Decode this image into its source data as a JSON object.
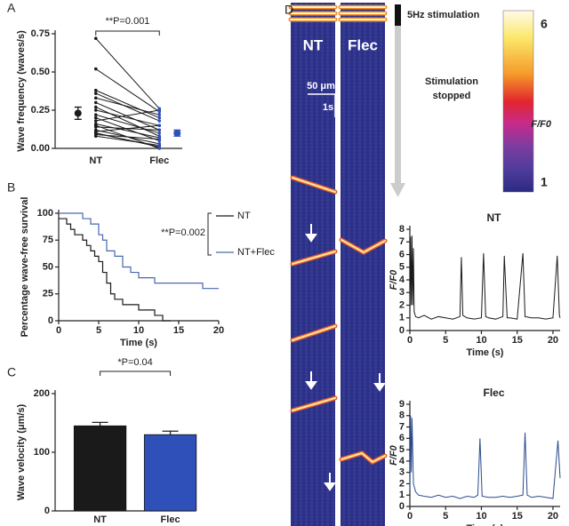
{
  "chart_data": [
    {
      "type": "paired",
      "panel": "A",
      "ylabel": "Wave frequency (waves/s)",
      "categories": [
        "NT",
        "Flec"
      ],
      "pairs": [
        [
          0.72,
          0.26
        ],
        [
          0.52,
          0.24
        ],
        [
          0.38,
          0.2
        ],
        [
          0.36,
          0.18
        ],
        [
          0.33,
          0.22
        ],
        [
          0.3,
          0.12
        ],
        [
          0.27,
          0.08
        ],
        [
          0.25,
          0.15
        ],
        [
          0.22,
          0.1
        ],
        [
          0.2,
          0.05
        ],
        [
          0.18,
          0.25
        ],
        [
          0.16,
          0.07
        ],
        [
          0.14,
          0.12
        ],
        [
          0.12,
          0.03
        ],
        [
          0.1,
          0.01
        ],
        [
          0.09,
          0.06
        ],
        [
          0.08,
          0.02
        ],
        [
          0.15,
          0.0
        ],
        [
          0.11,
          0.15
        ],
        [
          0.1,
          0.01
        ]
      ],
      "means": [
        0.23,
        0.1
      ],
      "errors": [
        0.04,
        0.02
      ],
      "colors": [
        "#1a1a1a",
        "#2e50b8"
      ],
      "line_color": "#1a1a1a",
      "annotation": "**P=0.001",
      "ylim": [
        0,
        0.75
      ],
      "yticks": [
        {
          "value": 0,
          "label": "0.00"
        },
        {
          "value": 0.25,
          "label": "0.25"
        },
        {
          "value": 0.5,
          "label": "0.50"
        },
        {
          "value": 0.75,
          "label": "0.75"
        }
      ]
    },
    {
      "type": "step",
      "panel": "B",
      "xlabel": "Time (s)",
      "ylabel": "Percentage wave-free survival",
      "annotation": "**P=0.002",
      "series": [
        {
          "name": "NT",
          "color": "#1a1a1a",
          "x": [
            0,
            1,
            1.5,
            2,
            3,
            3.5,
            4,
            4.5,
            5,
            5.5,
            6,
            6.5,
            7,
            8,
            10,
            12,
            13,
            14
          ],
          "values": [
            95,
            90,
            85,
            80,
            75,
            70,
            65,
            60,
            55,
            45,
            35,
            25,
            20,
            15,
            10,
            5,
            0,
            0
          ]
        },
        {
          "name": "NT+Flec",
          "color": "#4a68b0",
          "x": [
            0,
            3,
            4,
            5,
            5.5,
            6,
            7,
            8,
            9,
            10,
            12,
            15,
            18,
            20
          ],
          "values": [
            100,
            95,
            90,
            80,
            75,
            65,
            60,
            50,
            45,
            40,
            35,
            35,
            30,
            30
          ]
        }
      ],
      "xlim": [
        0,
        20
      ],
      "xticks": [
        0,
        5,
        10,
        15,
        20
      ],
      "ylim": [
        0,
        100
      ],
      "yticks": [
        0,
        25,
        50,
        75,
        100
      ]
    },
    {
      "type": "bar",
      "panel": "C",
      "ylabel": "Wave velocity (μm/s)",
      "categories": [
        "NT",
        "Flec"
      ],
      "values": [
        145,
        130
      ],
      "errors": [
        6,
        6
      ],
      "colors": [
        "#1a1a1a",
        "#2e50b8"
      ],
      "annotation": "*P=0.04",
      "ylim": [
        0,
        200
      ],
      "yticks": [
        0,
        100,
        200
      ]
    },
    {
      "type": "line",
      "title": "NT",
      "xlabel": "Time (s)",
      "ylabel": "F/F0",
      "color": "#1a1a1a",
      "x": [
        0,
        0.1,
        0.2,
        0.3,
        0.4,
        0.5,
        0.6,
        0.8,
        1.2,
        2,
        3,
        4,
        5,
        6,
        7,
        7.2,
        7.4,
        8,
        9,
        10,
        10.3,
        10.6,
        11,
        12,
        13,
        13.2,
        13.6,
        14,
        15,
        15.8,
        16.1,
        17,
        18,
        19,
        20,
        20.6,
        20.9,
        21
      ],
      "values": [
        1.2,
        7.4,
        2,
        7.5,
        2,
        6.5,
        1.5,
        1.1,
        1,
        1.2,
        0.9,
        1.1,
        1,
        0.9,
        1.1,
        5.8,
        1.2,
        1,
        0.9,
        1,
        6.1,
        1.1,
        1,
        0.9,
        1.1,
        5.9,
        1,
        1,
        0.9,
        6.1,
        1.1,
        1,
        1,
        0.9,
        1,
        5.9,
        1.2,
        1
      ],
      "xlim": [
        0,
        21
      ],
      "xticks": [
        0,
        5,
        10,
        15,
        20
      ],
      "ylim": [
        0,
        8
      ],
      "yticks": [
        0,
        1,
        2,
        3,
        4,
        5,
        6,
        7,
        8
      ]
    },
    {
      "type": "line",
      "title": "Flec",
      "xlabel": "Time (s)",
      "ylabel": "F/F0",
      "color": "#2a4a8a",
      "x": [
        0,
        0.1,
        0.2,
        0.3,
        0.5,
        0.8,
        1.2,
        2,
        3,
        4,
        5,
        6,
        7,
        8,
        9,
        9.5,
        9.8,
        10.1,
        11,
        12,
        13,
        14,
        15,
        15.8,
        16.1,
        16.4,
        17,
        18,
        19,
        20,
        20.7,
        21
      ],
      "values": [
        1.5,
        8,
        3,
        7.8,
        2,
        1.3,
        1,
        0.9,
        0.8,
        1,
        0.8,
        0.9,
        0.7,
        0.9,
        0.8,
        1,
        6,
        0.9,
        0.8,
        0.8,
        0.9,
        0.8,
        0.9,
        1,
        6.5,
        1,
        0.8,
        0.9,
        0.8,
        0.7,
        5.8,
        2.5
      ],
      "xlim": [
        0,
        21
      ],
      "xticks": [
        0,
        5,
        10,
        15,
        20
      ],
      "ylim": [
        0,
        9
      ],
      "yticks": [
        0,
        1,
        2,
        3,
        4,
        5,
        6,
        7,
        8,
        9
      ]
    }
  ],
  "linescan": {
    "panel": "D",
    "labels": [
      "NT",
      "Flec"
    ],
    "scale_bar_space": "50 μm",
    "scale_bar_time": "1s",
    "stimulation": "5Hz stimulation",
    "stopped": [
      "Stimulation",
      "stopped"
    ],
    "colorbar": {
      "label": "F/F0",
      "ticks": [
        1,
        6
      ]
    }
  }
}
